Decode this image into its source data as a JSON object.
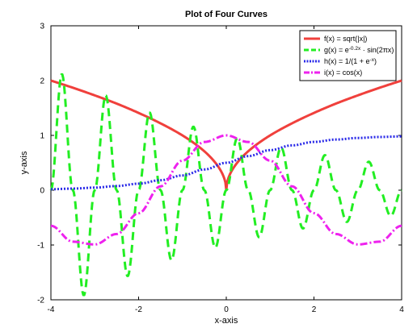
{
  "chart_data": {
    "type": "line",
    "title": "Plot of Four Curves",
    "xlabel": "x-axis",
    "ylabel": "y-axis",
    "xlim": [
      -4,
      4
    ],
    "ylim": [
      -2,
      3
    ],
    "xticks": [
      -4,
      -2,
      0,
      2,
      4
    ],
    "yticks": [
      -2,
      -1,
      0,
      1,
      2,
      3
    ],
    "xtick_labels": [
      "-4",
      "-2",
      "0",
      "2",
      "4"
    ],
    "ytick_labels": [
      "-2",
      "-1",
      "0",
      "1",
      "2",
      "3"
    ],
    "grid": false,
    "legend_position": "top-right",
    "x": [
      -4,
      -3.5,
      -3,
      -2.5,
      -2,
      -1.5,
      -1,
      -0.5,
      0,
      0.5,
      1,
      1.5,
      2,
      2.5,
      3,
      3.5,
      4
    ],
    "series": [
      {
        "name": "f(x) = sqrt(|x|)",
        "color": "#f0403c",
        "dash": "solid",
        "values": [
          2.0,
          1.87,
          1.73,
          1.58,
          1.41,
          1.22,
          1.0,
          0.71,
          0.0,
          0.71,
          1.0,
          1.22,
          1.41,
          1.58,
          1.73,
          1.87,
          2.0
        ]
      },
      {
        "name": "g(x) = e-0.2x · sin(2πx)",
        "legend_parts": [
          "g(x) = e",
          "-0.2x",
          " · sin(2πx)"
        ],
        "color": "#22ee22",
        "dash": "dashed",
        "values": [
          0.0,
          0.0,
          0.0,
          0.0,
          0.0,
          0.0,
          0.0,
          0.0,
          0.0,
          0.0,
          0.0,
          0.0,
          0.0,
          0.0,
          0.0,
          0.0,
          0.0
        ],
        "peaks": {
          "x": [
            -3.75,
            -3.25,
            -2.75,
            -2.25,
            -1.75,
            -1.25,
            -0.75,
            -0.25,
            0.25,
            0.75,
            1.25,
            1.75,
            2.25,
            2.75,
            3.25,
            3.75
          ],
          "y": [
            2.12,
            -1.92,
            1.73,
            -1.57,
            1.42,
            -1.28,
            1.16,
            -1.05,
            0.95,
            -0.86,
            0.78,
            -0.7,
            0.64,
            -0.58,
            0.52,
            -0.47
          ]
        }
      },
      {
        "name": "h(x) = 1/(1 + e-x)",
        "legend_parts": [
          "h(x) = 1/(1 + e",
          "-x",
          ")"
        ],
        "color": "#2a2ae8",
        "dash": "dotted",
        "values": [
          0.018,
          0.029,
          0.047,
          0.076,
          0.119,
          0.182,
          0.269,
          0.378,
          0.5,
          0.622,
          0.731,
          0.818,
          0.881,
          0.924,
          0.953,
          0.971,
          0.982
        ]
      },
      {
        "name": "i(x) = cos(x)",
        "color": "#ee22ee",
        "dash": "dashdot",
        "values": [
          -0.65,
          -0.94,
          -0.99,
          -0.8,
          -0.42,
          0.07,
          0.54,
          0.88,
          1.0,
          0.88,
          0.54,
          0.07,
          -0.42,
          -0.8,
          -0.99,
          -0.94,
          -0.65
        ]
      }
    ]
  }
}
